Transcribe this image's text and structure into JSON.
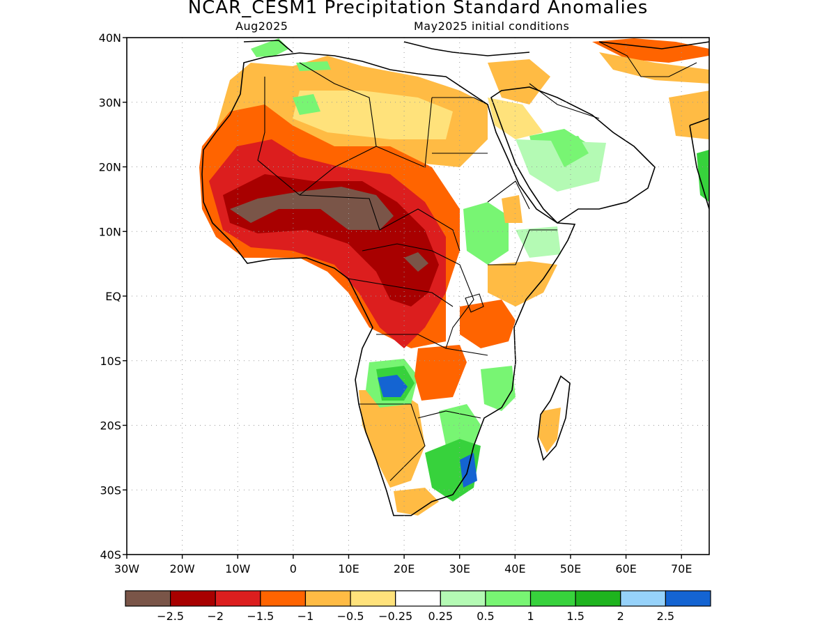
{
  "title": "NCAR_CESM1 Precipitation Standard Anomalies",
  "subtitle_left": "Aug2025",
  "subtitle_right": "May2025 initial conditions",
  "map": {
    "lon_range": [
      -30,
      75
    ],
    "lat_range": [
      -40,
      40
    ],
    "lat_ticks": [
      {
        "value": 40,
        "label": "40N"
      },
      {
        "value": 30,
        "label": "30N"
      },
      {
        "value": 20,
        "label": "20N"
      },
      {
        "value": 10,
        "label": "10N"
      },
      {
        "value": 0,
        "label": "EQ"
      },
      {
        "value": -10,
        "label": "10S"
      },
      {
        "value": -20,
        "label": "20S"
      },
      {
        "value": -30,
        "label": "30S"
      },
      {
        "value": -40,
        "label": "40S"
      }
    ],
    "lon_ticks": [
      {
        "value": -30,
        "label": "30W"
      },
      {
        "value": -20,
        "label": "20W"
      },
      {
        "value": -10,
        "label": "10W"
      },
      {
        "value": 0,
        "label": "0"
      },
      {
        "value": 10,
        "label": "10E"
      },
      {
        "value": 20,
        "label": "20E"
      },
      {
        "value": 30,
        "label": "30E"
      },
      {
        "value": 40,
        "label": "40E"
      },
      {
        "value": 50,
        "label": "50E"
      },
      {
        "value": 60,
        "label": "60E"
      },
      {
        "value": 70,
        "label": "70E"
      }
    ],
    "colors": {
      "le_m2_5": "#7a5548",
      "m2_5_m2": "#a80000",
      "m2_m1_5": "#dc1e1e",
      "m1_5_m1": "#ff6400",
      "m1_m0_5": "#ffbb44",
      "m0_5_m0_25": "#ffe27b",
      "neutral": "#ffffff",
      "p0_25_p0_5": "#b4fab4",
      "p0_5_p1": "#78f573",
      "p1_p1_5": "#37d23c",
      "p1_5_p2": "#1eb41e",
      "p2_p2_5": "#96d2fa",
      "ge_p2_5": "#1464d2"
    }
  },
  "colorbar": {
    "colors": [
      "#7a5548",
      "#a80000",
      "#dc1e1e",
      "#ff6400",
      "#ffbb44",
      "#ffe27b",
      "#ffffff",
      "#b4fab4",
      "#78f573",
      "#37d23c",
      "#1eb41e",
      "#96d2fa",
      "#1464d2"
    ],
    "labels": [
      "−2.5",
      "−2",
      "−1.5",
      "−1",
      "−0.5",
      "−0.25",
      "0.25",
      "0.5",
      "1",
      "1.5",
      "2",
      "2.5"
    ]
  }
}
